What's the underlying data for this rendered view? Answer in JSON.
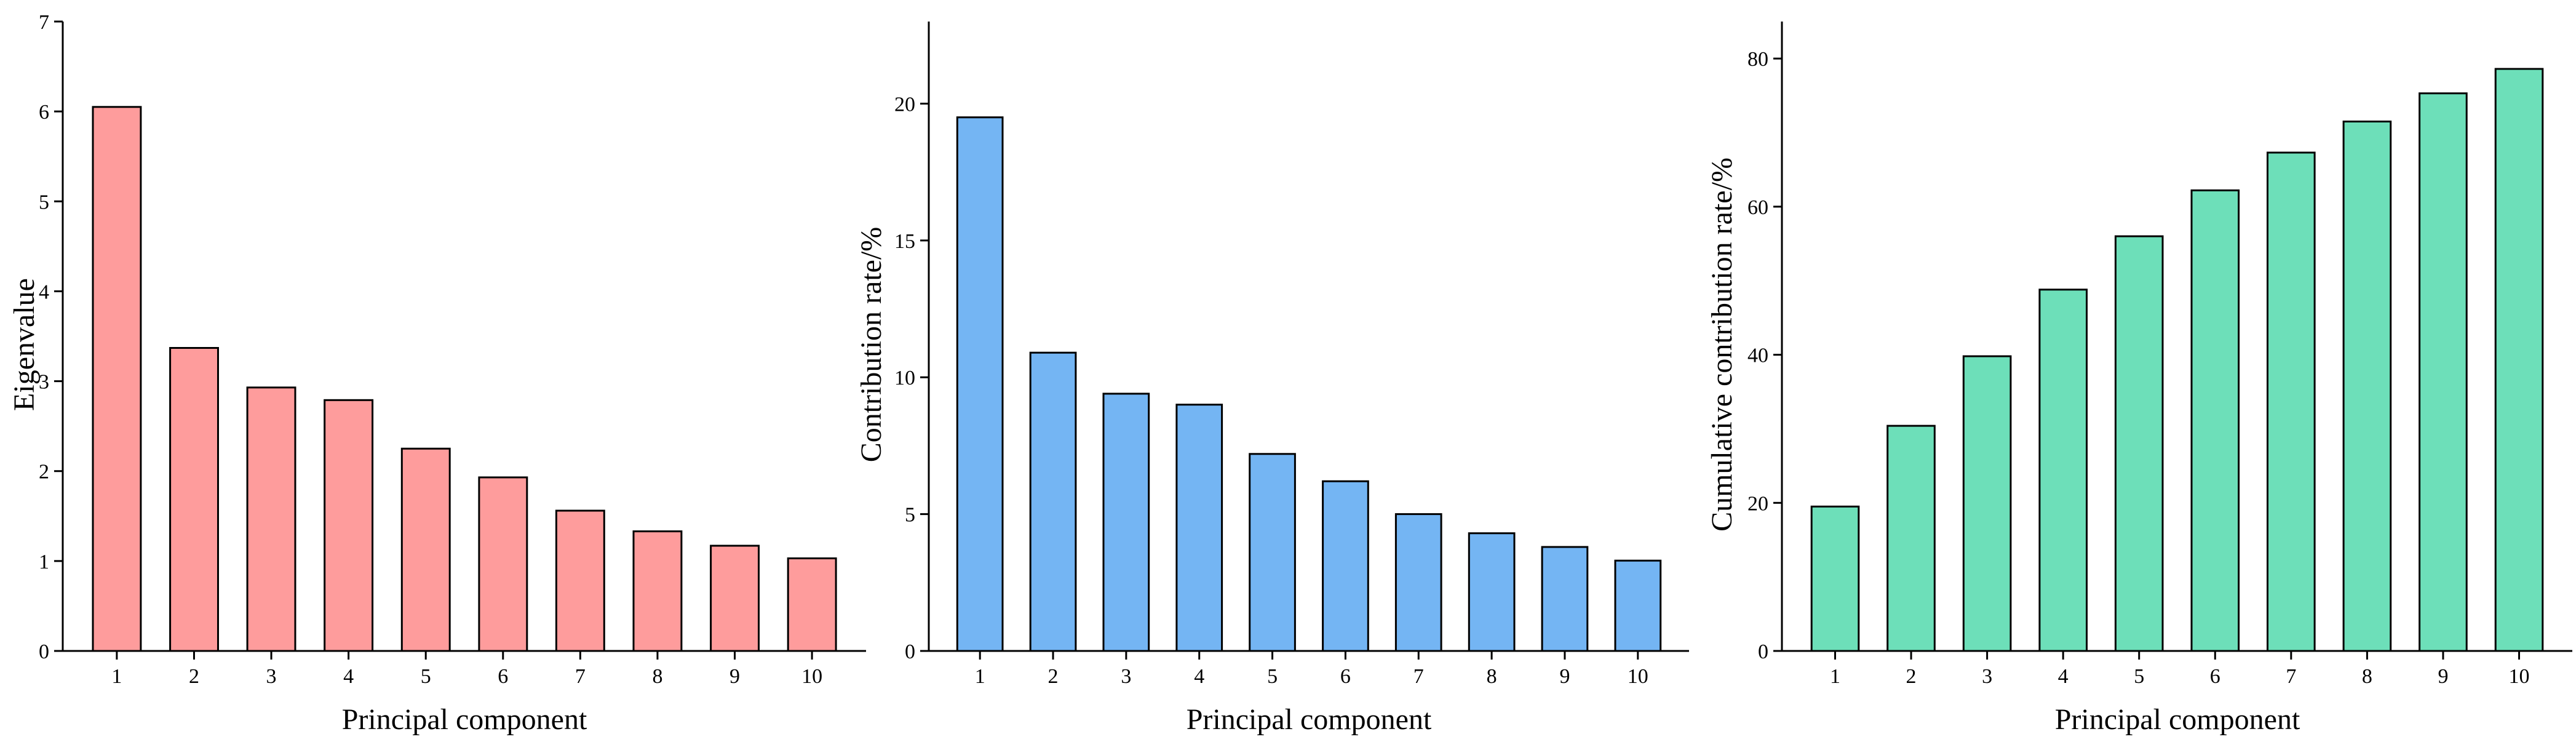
{
  "chart_data": [
    {
      "type": "bar",
      "categories": [
        "1",
        "2",
        "3",
        "4",
        "5",
        "6",
        "7",
        "8",
        "9",
        "10"
      ],
      "values": [
        6.05,
        3.37,
        2.93,
        2.79,
        2.25,
        1.93,
        1.56,
        1.33,
        1.17,
        1.03
      ],
      "xlabel": "Principal component",
      "ylabel": "Eigenvalue",
      "ylim": [
        0,
        7
      ],
      "yticks": [
        0,
        1,
        2,
        3,
        4,
        5,
        6,
        7
      ],
      "bar_color": "#fe9c9c",
      "grid": false
    },
    {
      "type": "bar",
      "categories": [
        "1",
        "2",
        "3",
        "4",
        "5",
        "6",
        "7",
        "8",
        "9",
        "10"
      ],
      "values": [
        19.5,
        10.9,
        9.4,
        9.0,
        7.2,
        6.2,
        5.0,
        4.3,
        3.8,
        3.3
      ],
      "xlabel": "Principal component",
      "ylabel": "Contribution rate/%",
      "ylim": [
        0,
        23
      ],
      "yticks": [
        0,
        5,
        10,
        15,
        20
      ],
      "bar_color": "#74b5f3",
      "grid": false
    },
    {
      "type": "bar",
      "categories": [
        "1",
        "2",
        "3",
        "4",
        "5",
        "6",
        "7",
        "8",
        "9",
        "10"
      ],
      "values": [
        19.5,
        30.4,
        39.8,
        48.8,
        56.0,
        62.2,
        67.3,
        71.5,
        75.3,
        78.6
      ],
      "xlabel": "Principal component",
      "ylabel": "Cumulative contribution rate/%",
      "ylim": [
        0,
        85
      ],
      "yticks": [
        0,
        20,
        40,
        60,
        80
      ],
      "bar_color": "#6ddfb9",
      "grid": false
    }
  ]
}
